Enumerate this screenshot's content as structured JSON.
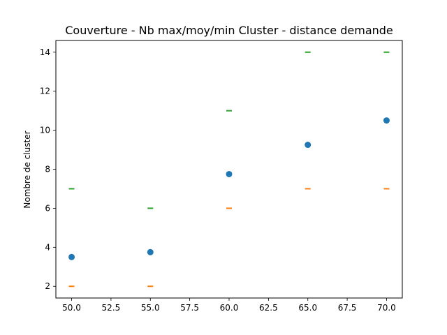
{
  "chart_data": {
    "type": "scatter",
    "title": "Couverture - Nb max/moy/min Cluster - distance demande",
    "xlabel": "",
    "ylabel": "Nombre de cluster",
    "xlim": [
      49.0,
      71.0
    ],
    "ylim": [
      1.4,
      14.6
    ],
    "x_ticks": [
      50.0,
      52.5,
      55.0,
      57.5,
      60.0,
      62.5,
      65.0,
      67.5,
      70.0
    ],
    "x_tick_labels": [
      "50.0",
      "52.5",
      "55.0",
      "57.5",
      "60.0",
      "62.5",
      "65.0",
      "67.5",
      "70.0"
    ],
    "y_ticks": [
      2,
      4,
      6,
      8,
      10,
      12,
      14
    ],
    "y_tick_labels": [
      "2",
      "4",
      "6",
      "8",
      "10",
      "12",
      "14"
    ],
    "grid": false,
    "legend": "none",
    "x": [
      50,
      55,
      60,
      65,
      70
    ],
    "series": [
      {
        "role": "moyenne",
        "marker": "circle",
        "color": "#1f77b4",
        "values": [
          3.5,
          3.75,
          7.75,
          9.25,
          10.5
        ]
      },
      {
        "role": "minimum",
        "marker": "hline",
        "color": "#ff7f0e",
        "values": [
          2,
          2,
          6,
          7,
          7
        ]
      },
      {
        "role": "maximum",
        "marker": "hline",
        "color": "#2ca02c",
        "values": [
          7,
          6,
          11,
          14,
          14
        ]
      }
    ]
  }
}
